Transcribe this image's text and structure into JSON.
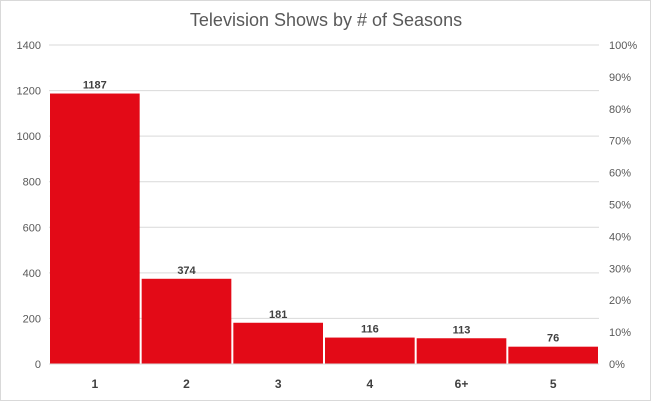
{
  "chart_data": {
    "type": "bar",
    "title": "Television Shows by # of Seasons",
    "categories": [
      "1",
      "2",
      "3",
      "4",
      "6+",
      "5"
    ],
    "values": [
      1187,
      374,
      181,
      116,
      113,
      76
    ],
    "ylim": [
      0,
      1400
    ],
    "y_ticks": [
      "0",
      "200",
      "400",
      "600",
      "800",
      "1000",
      "1200",
      "1400"
    ],
    "y2lim": [
      0,
      100
    ],
    "y2_ticks": [
      "0%",
      "10%",
      "20%",
      "30%",
      "40%",
      "50%",
      "60%",
      "70%",
      "80%",
      "90%",
      "100%"
    ],
    "xlabel": "",
    "ylabel": "",
    "grid": true,
    "bar_color": "#e30a17",
    "gridline_color": "#d9d9d9"
  }
}
